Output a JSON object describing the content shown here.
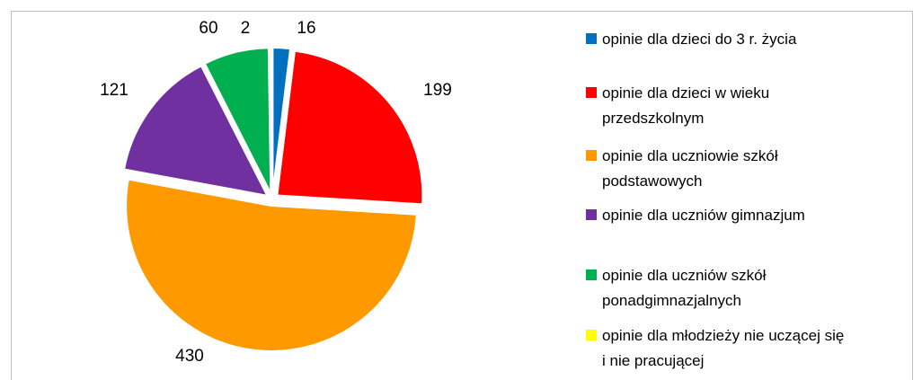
{
  "chart_data": {
    "type": "pie",
    "series": [
      {
        "name": "opinie dla dzieci do 3 r. życia",
        "color": "#0070c0",
        "values": [
          16
        ]
      },
      {
        "name": "opinie dla dzieci w wieku\nprzedszkolnym",
        "color": "#ff0000",
        "values": [
          199
        ]
      },
      {
        "name": "opinie dla uczniowie szkół\npodstawowych",
        "color": "#ff9900",
        "values": [
          430
        ]
      },
      {
        "name": "opinie dla uczniów gimnazjum",
        "color": "#7030a0",
        "values": [
          121
        ]
      },
      {
        "name": "opinie dla uczniów szkół\nponadgimnazjalnych",
        "color": "#00b050",
        "values": [
          60
        ]
      },
      {
        "name": "opinie dla młodzieży nie uczącej się\ni nie pracującej",
        "color": "#ffff00",
        "values": [
          2
        ]
      }
    ],
    "legend": "right"
  }
}
